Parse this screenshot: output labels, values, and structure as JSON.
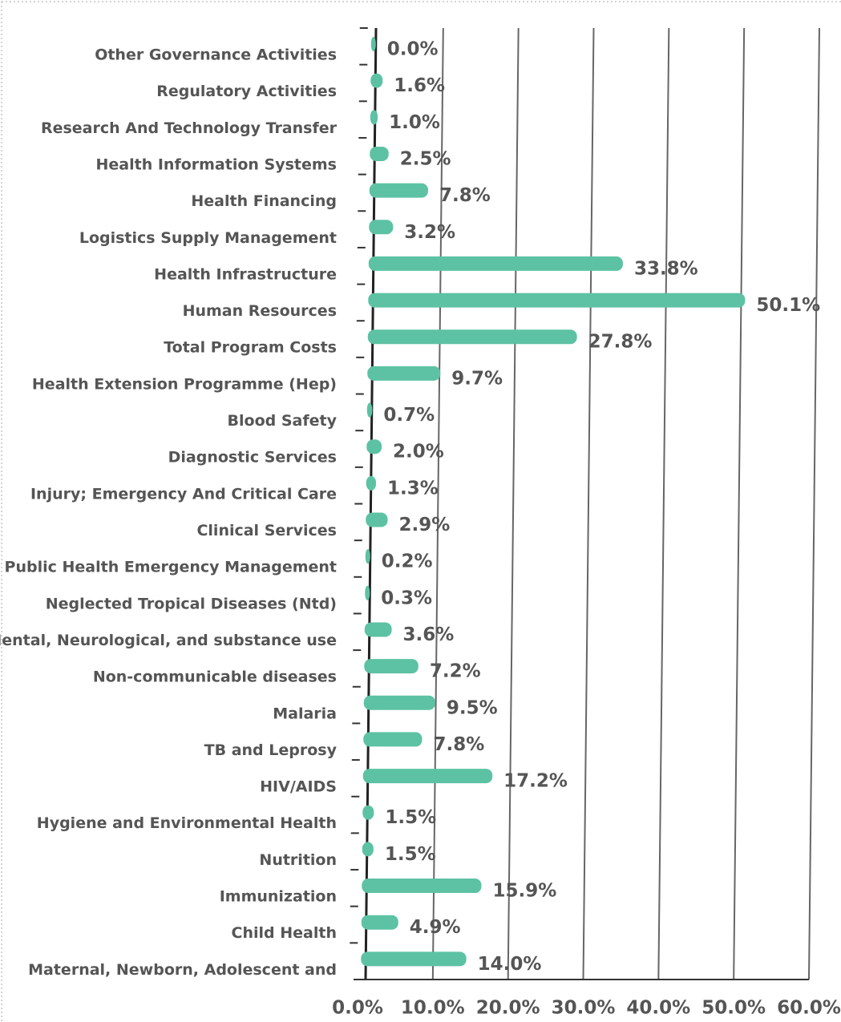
{
  "chart_data": {
    "type": "bar",
    "orientation": "horizontal",
    "categories": [
      "Other Governance Activities",
      "Regulatory Activities",
      "Research And Technology Transfer",
      "Health Information Systems",
      "Health Financing",
      "Logistics Supply Management",
      "Health Infrastructure",
      "Human Resources",
      "Total Program Costs",
      "Health Extension Programme (Hep)",
      "Blood Safety",
      "Diagnostic Services",
      "Injury; Emergency And Critical Care",
      "Clinical Services",
      "Public Health Emergency Management",
      "Neglected Tropical Diseases (Ntd)",
      "Mental, Neurological, and substance use",
      "Non-communicable diseases",
      "Malaria",
      "TB and Leprosy",
      "HIV/AIDS",
      "Hygiene and Environmental Health",
      "Nutrition",
      "Immunization",
      "Child Health",
      "Maternal, Newborn, Adolescent and"
    ],
    "values": [
      0.0,
      1.6,
      1.0,
      2.5,
      7.8,
      3.2,
      33.8,
      50.1,
      27.8,
      9.7,
      0.7,
      2.0,
      1.3,
      2.9,
      0.2,
      0.3,
      3.6,
      7.2,
      9.5,
      7.8,
      17.2,
      1.5,
      1.5,
      15.9,
      4.9,
      14.0
    ],
    "value_labels": [
      "0.0%",
      "1.6%",
      "1.0%",
      "2.5%",
      "7.8%",
      "3.2%",
      "33.8%",
      "50.1%",
      "27.8%",
      "9.7%",
      "0.7%",
      "2.0%",
      "1.3%",
      "2.9%",
      "0.2%",
      "0.3%",
      "3.6%",
      "7.2%",
      "9.5%",
      "7.8%",
      "17.2%",
      "1.5%",
      "1.5%",
      "15.9%",
      "4.9%",
      "14.0%"
    ],
    "color": "#5cc2a3",
    "xlim": [
      0,
      60
    ],
    "xticks": [
      {
        "value": 0,
        "label": "0.0%"
      },
      {
        "value": 10,
        "label": "10.0%"
      },
      {
        "value": 20,
        "label": "20.0%"
      },
      {
        "value": 30,
        "label": "30.0%"
      },
      {
        "value": 40,
        "label": "40.0%"
      },
      {
        "value": 50,
        "label": "50.0%"
      },
      {
        "value": 60,
        "label": "60.0%"
      }
    ],
    "grid": true
  }
}
